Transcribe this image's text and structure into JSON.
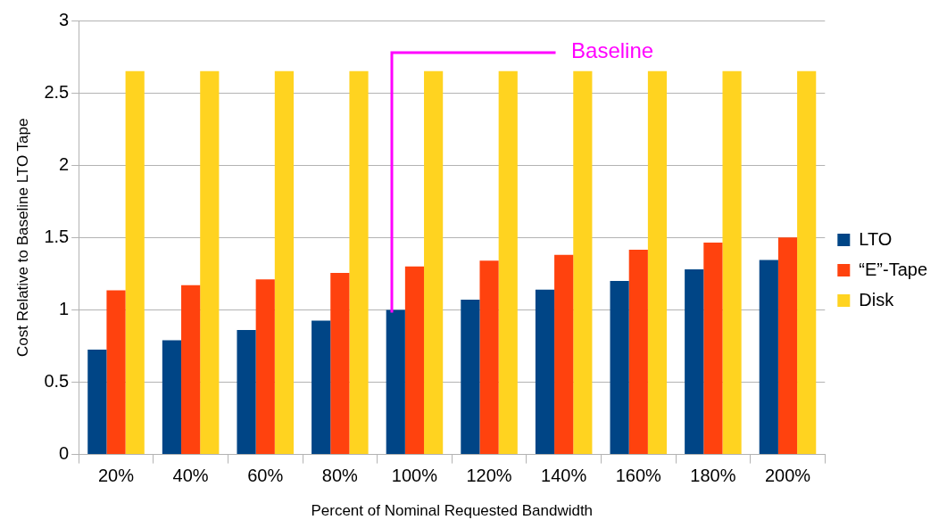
{
  "chart_data": {
    "type": "bar",
    "xlabel": "Percent of Nominal Requested Bandwidth",
    "ylabel": "Cost Relative to Baseline LTO Tape",
    "categories": [
      "20%",
      "40%",
      "60%",
      "80%",
      "100%",
      "120%",
      "140%",
      "160%",
      "180%",
      "200%"
    ],
    "series": [
      {
        "name": "LTO",
        "color": "#004586",
        "values": [
          0.725,
          0.79,
          0.86,
          0.925,
          1.0,
          1.07,
          1.14,
          1.2,
          1.28,
          1.345
        ]
      },
      {
        "name": "“E”-Tape",
        "color": "#ff420e",
        "values": [
          1.135,
          1.17,
          1.21,
          1.255,
          1.3,
          1.34,
          1.38,
          1.415,
          1.465,
          1.5
        ]
      },
      {
        "name": "Disk",
        "color": "#ffd320",
        "values": [
          2.65,
          2.65,
          2.65,
          2.65,
          2.65,
          2.65,
          2.65,
          2.65,
          2.65,
          2.65
        ]
      }
    ],
    "ylim": [
      0,
      3
    ],
    "yticks": [
      0,
      0.5,
      1,
      1.5,
      2,
      2.5,
      3
    ],
    "grid": "y",
    "legend": "right",
    "annotations": [
      "Baseline"
    ]
  }
}
